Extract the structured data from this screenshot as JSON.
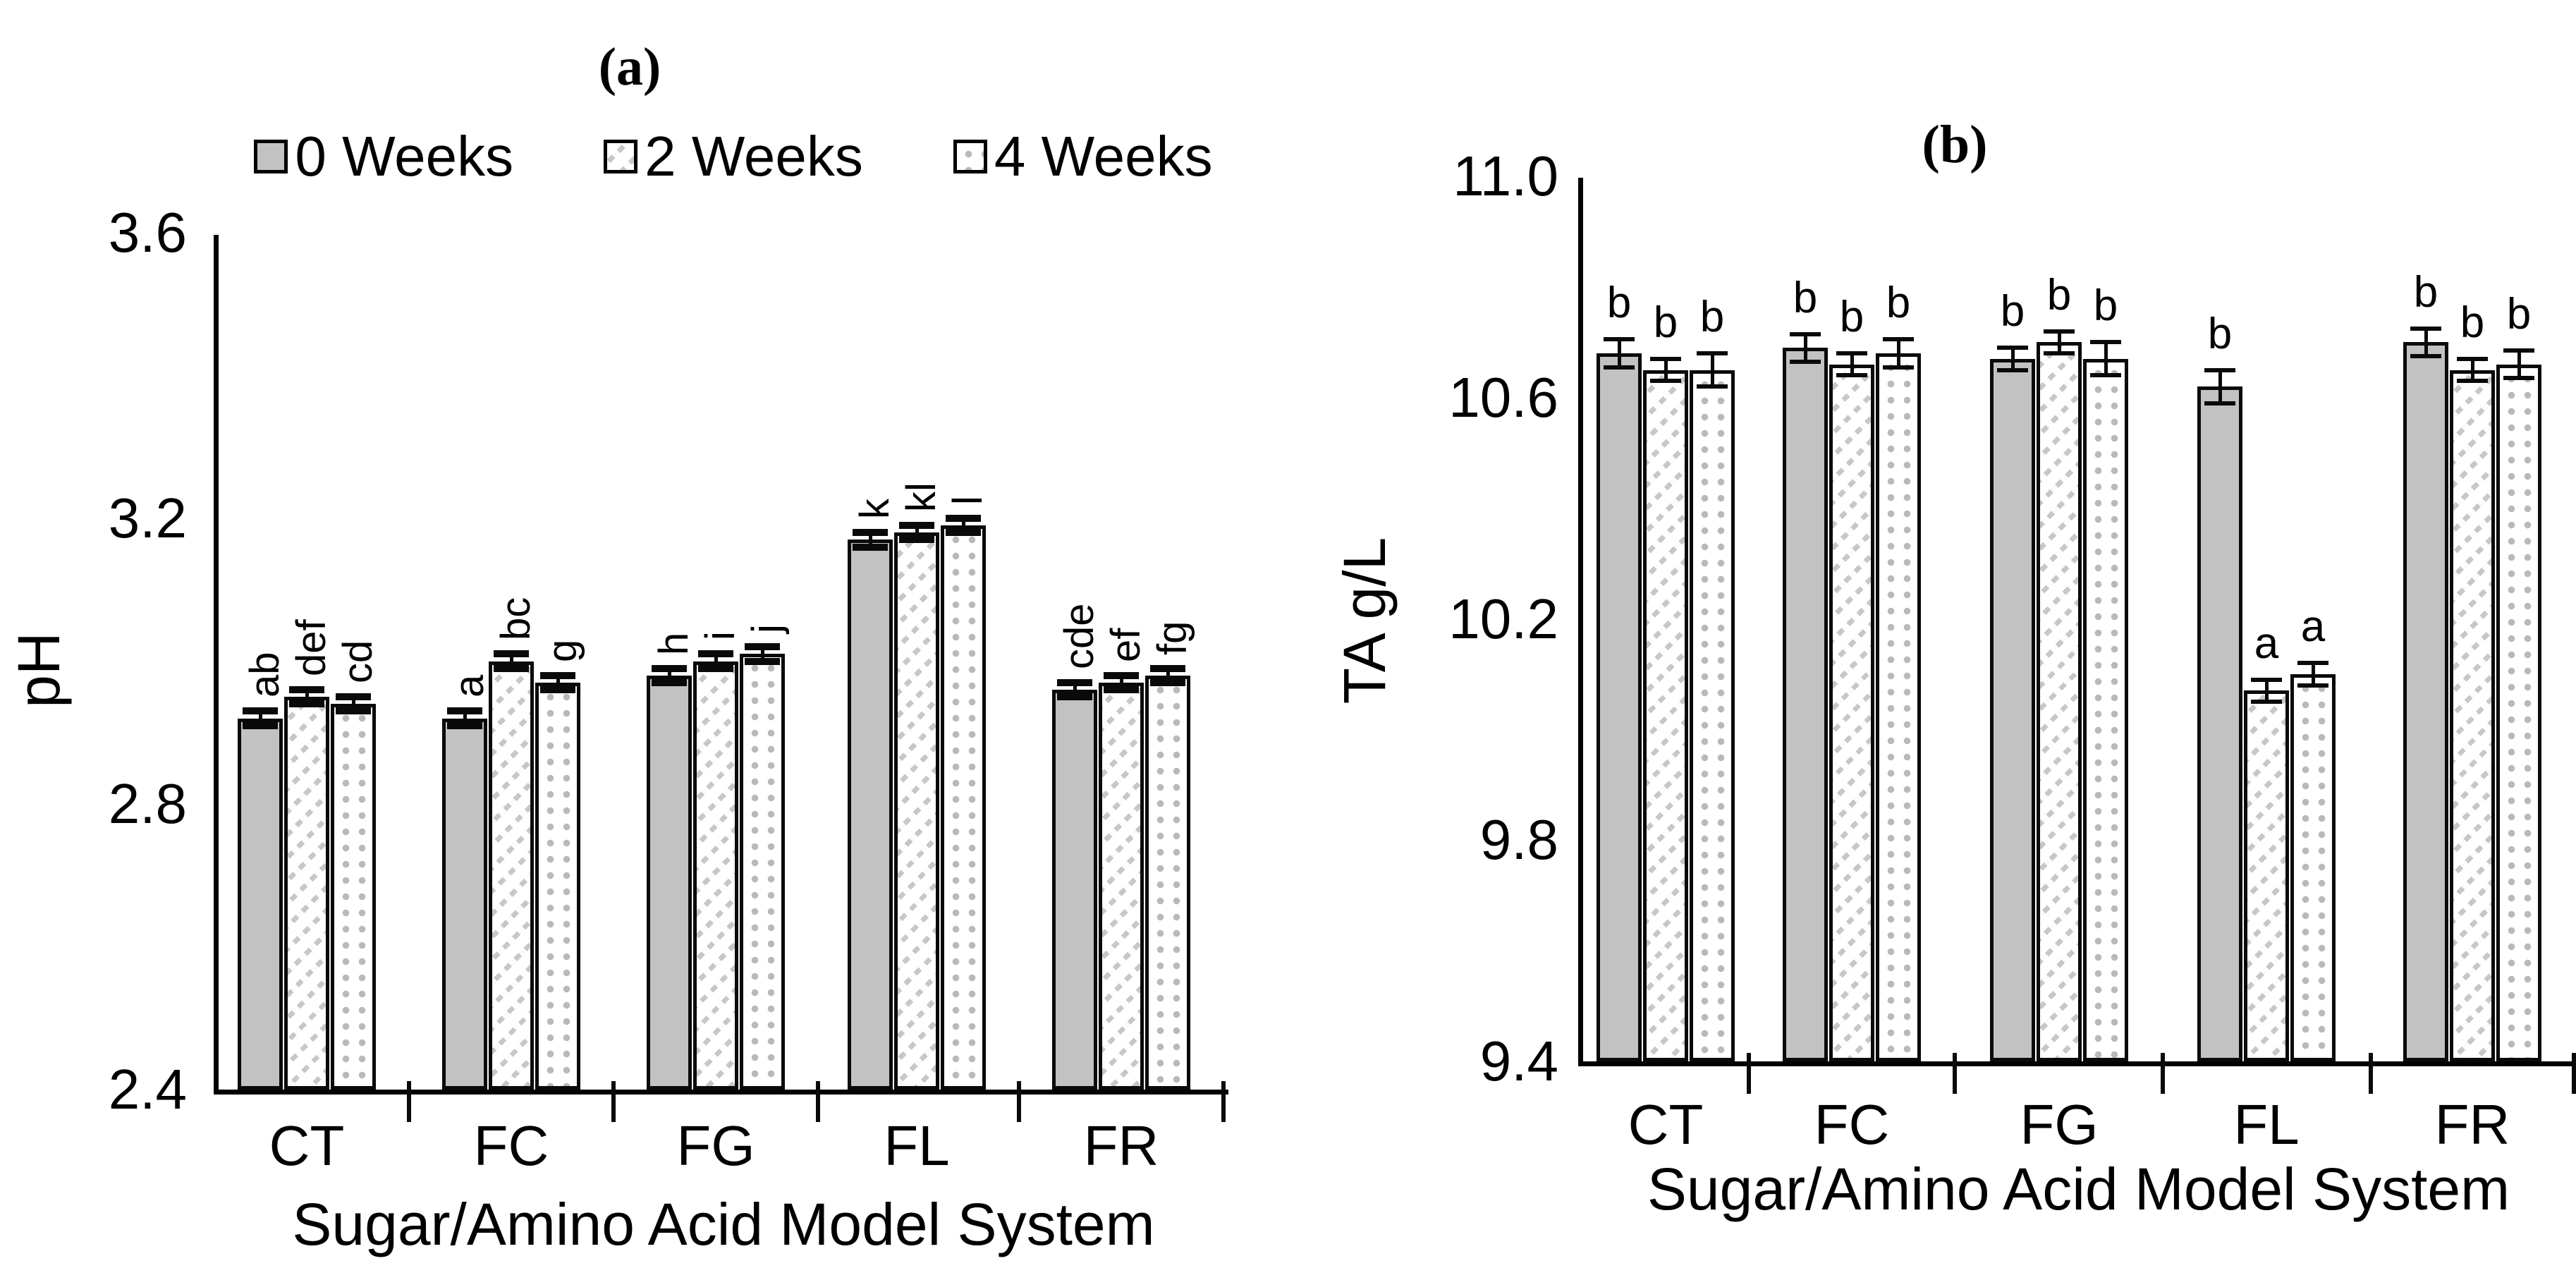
{
  "figure_titles": {
    "panel_a": "(a)",
    "panel_b": "(b)"
  },
  "legend": {
    "items": [
      {
        "label": "0 Weeks",
        "pattern": "solid-gray"
      },
      {
        "label": "2 Weeks",
        "pattern": "diagonal-stripes"
      },
      {
        "label": "4 Weeks",
        "pattern": "dots"
      }
    ]
  },
  "colors": {
    "bar_fill_gray": "#c2c2c2",
    "pattern_ink": "#c7c7c7",
    "axis": "#000000",
    "text": "#000000",
    "background": "#ffffff"
  },
  "chart_data": [
    {
      "type": "bar",
      "title": "(a)",
      "ylabel": "pH",
      "xlabel": "Sugar/Amino Acid Model System",
      "categories": [
        "CT",
        "FC",
        "FG",
        "FL",
        "FR"
      ],
      "ylim": [
        2.4,
        3.6
      ],
      "yticks": [
        {
          "label": "3.6",
          "value": 3.6
        },
        {
          "label": "3.2",
          "value": 3.2
        },
        {
          "label": "2.8",
          "value": 2.8
        },
        {
          "label": "2.4",
          "value": 2.4
        }
      ],
      "grid": false,
      "legend_position": "top",
      "sig_labels_rotated": true,
      "series": [
        {
          "name": "0 Weeks",
          "pattern": "solid-gray",
          "values": [
            2.92,
            2.92,
            2.98,
            3.17,
            2.96
          ],
          "errors": [
            0.01,
            0.01,
            0.01,
            0.01,
            0.01
          ],
          "sig_labels": [
            "ab",
            "a",
            "h",
            "k",
            "cde"
          ]
        },
        {
          "name": "2 Weeks",
          "pattern": "diagonal-stripes",
          "values": [
            2.95,
            3.0,
            3.0,
            3.18,
            2.97
          ],
          "errors": [
            0.01,
            0.01,
            0.01,
            0.01,
            0.01
          ],
          "sig_labels": [
            "def",
            "bc",
            "i",
            "kl",
            "ef"
          ]
        },
        {
          "name": "4 Weeks",
          "pattern": "dots",
          "values": [
            2.94,
            2.97,
            3.01,
            3.19,
            2.98
          ],
          "errors": [
            0.01,
            0.01,
            0.01,
            0.01,
            0.01
          ],
          "sig_labels": [
            "cd",
            "g",
            "j",
            "l",
            "fg"
          ]
        }
      ]
    },
    {
      "type": "bar",
      "title": "(b)",
      "ylabel": "TA g/L",
      "xlabel": "Sugar/Amino Acid Model System",
      "categories": [
        "CT",
        "FC",
        "FG",
        "FL",
        "FR"
      ],
      "ylim": [
        9.4,
        11.0
      ],
      "yticks": [
        {
          "label": "11.0",
          "value": 11.0
        },
        {
          "label": "10.6",
          "value": 10.6
        },
        {
          "label": "10.2",
          "value": 10.2
        },
        {
          "label": "9.8",
          "value": 9.8
        },
        {
          "label": "9.4",
          "value": 9.4
        }
      ],
      "grid": false,
      "legend_position": "none",
      "sig_labels_rotated": false,
      "series": [
        {
          "name": "0 Weeks",
          "pattern": "solid-gray",
          "values": [
            10.68,
            10.69,
            10.67,
            10.62,
            10.7
          ],
          "errors": [
            0.025,
            0.025,
            0.02,
            0.03,
            0.025
          ],
          "sig_labels": [
            "b",
            "b",
            "b",
            "b",
            "b"
          ]
        },
        {
          "name": "2 Weeks",
          "pattern": "diagonal-stripes",
          "values": [
            10.65,
            10.66,
            10.7,
            10.07,
            10.65
          ],
          "errors": [
            0.02,
            0.02,
            0.02,
            0.02,
            0.02
          ],
          "sig_labels": [
            "b",
            "b",
            "b",
            "a",
            "b"
          ]
        },
        {
          "name": "4 Weeks",
          "pattern": "dots",
          "values": [
            10.65,
            10.68,
            10.67,
            10.1,
            10.66
          ],
          "errors": [
            0.03,
            0.025,
            0.03,
            0.02,
            0.025
          ],
          "sig_labels": [
            "b",
            "b",
            "b",
            "a",
            "b"
          ]
        }
      ]
    }
  ]
}
